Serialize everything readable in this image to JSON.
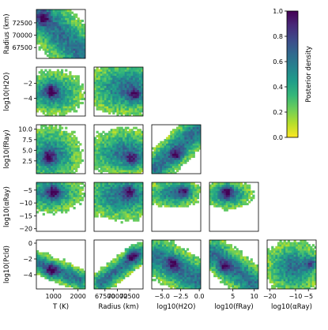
{
  "chart_data": {
    "type": "heatmap",
    "kind": "corner-plot",
    "title": "",
    "variables": [
      {
        "id": "T",
        "label": "T (K)",
        "range": [
          300,
          2300
        ],
        "ticks": [
          1000,
          2000
        ]
      },
      {
        "id": "R",
        "label": "Radius (km)",
        "range": [
          65300,
          75200
        ],
        "ticks": [
          67500,
          70000,
          72500
        ]
      },
      {
        "id": "H2O",
        "label": "log10(H2O)",
        "range": [
          -6.4,
          0.2
        ],
        "ticks": [
          -5.0,
          -2.5,
          0.0
        ],
        "tick_text": [
          "−5.0",
          "−2.5",
          "0.0"
        ]
      },
      {
        "id": "fRay",
        "label": "log10(fRay)",
        "range": [
          -0.5,
          11
        ],
        "ticks": [
          0,
          5,
          10
        ]
      },
      {
        "id": "aRay",
        "label": "log10(αRay)",
        "range": [
          -21,
          -2
        ],
        "ticks": [
          -20,
          -10,
          -5
        ],
        "tick_text": [
          "−20",
          "−10",
          "−5"
        ]
      },
      {
        "id": "Pcl",
        "label": "log10(Pcld)",
        "range": [
          -5.8,
          0.4
        ],
        "ticks": [
          -4,
          -2,
          0
        ]
      }
    ],
    "row_ticks": {
      "R": {
        "values": [
          67500,
          70000,
          72500
        ],
        "text": [
          "67500",
          "70000",
          "72500"
        ]
      },
      "H2O": {
        "values": [
          -4,
          -2
        ],
        "text": [
          "−4",
          "−2"
        ]
      },
      "fRay": {
        "values": [
          2.5,
          5.0,
          7.5,
          10.0
        ],
        "text": [
          "2.5",
          "5.0",
          "7.5",
          "10.0"
        ]
      },
      "aRay": {
        "values": [
          -20,
          -15,
          -10,
          -5
        ],
        "text": [
          "−20",
          "−15",
          "−10",
          "−5"
        ]
      },
      "Pcl": {
        "values": [
          -4,
          -2,
          0
        ],
        "text": [
          "−4",
          "−2",
          "0"
        ]
      }
    },
    "col_tick_text": {
      "T": [
        "1000",
        "2000"
      ],
      "R": [
        "67500",
        "70000",
        "72500"
      ],
      "H2O": [
        "−5.0",
        "−2.5",
        "0.0"
      ],
      "fRay": [
        "5",
        "10"
      ],
      "aRay": [
        "−20",
        "−10",
        "−5"
      ]
    },
    "axis_labels": {
      "rows": [
        "Radius (km)",
        "log10(H2O)",
        "log10(fRay)",
        "log10(αRay)",
        "log10(Pcld)"
      ],
      "cols": [
        "T (K)",
        "Radius (km)",
        "log10(H2O)",
        "log10(fRay)",
        "log10(αRay)"
      ]
    },
    "panels": [
      {
        "row": "R",
        "col": "T",
        "shape": "band",
        "from": [
          400,
          74500
        ],
        "to": [
          2100,
          66500
        ],
        "width": 2600,
        "peak": [
          600,
          73500
        ]
      },
      {
        "row": "H2O",
        "col": "T",
        "shape": "blob",
        "center": [
          1000,
          -3.2
        ],
        "spread": [
          650,
          1.6
        ],
        "peak": [
          900,
          -3.0
        ]
      },
      {
        "row": "H2O",
        "col": "R",
        "shape": "triangle",
        "center": [
          72000,
          -2.5
        ],
        "spread": [
          4500,
          2.0
        ],
        "peak": [
          73500,
          -3.5
        ]
      },
      {
        "row": "fRay",
        "col": "T",
        "shape": "blob",
        "center": [
          900,
          4.0
        ],
        "spread": [
          650,
          3.5
        ],
        "peak": [
          800,
          3.5
        ]
      },
      {
        "row": "fRay",
        "col": "R",
        "shape": "triangle",
        "center": [
          71500,
          4.5
        ],
        "spread": [
          4000,
          3.0
        ],
        "peak": [
          73000,
          3.0
        ]
      },
      {
        "row": "fRay",
        "col": "H2O",
        "shape": "band",
        "from": [
          -5.8,
          1.0
        ],
        "to": [
          -0.5,
          9.5
        ],
        "width": 1.2,
        "peak": [
          -3.0,
          4.0
        ]
      },
      {
        "row": "aRay",
        "col": "T",
        "shape": "curve",
        "center": [
          900,
          -6.0
        ],
        "spread": [
          700,
          4.0
        ],
        "peak": [
          1000,
          -5.5
        ]
      },
      {
        "row": "aRay",
        "col": "R",
        "shape": "curve",
        "center": [
          71000,
          -7.0
        ],
        "spread": [
          4500,
          5.0
        ],
        "peak": [
          72500,
          -5.5
        ]
      },
      {
        "row": "aRay",
        "col": "H2O",
        "shape": "blob",
        "center": [
          -3.5,
          -6.0
        ],
        "spread": [
          2.0,
          3.0
        ],
        "peak": [
          -2.0,
          -5.5
        ]
      },
      {
        "row": "aRay",
        "col": "fRay",
        "shape": "blob",
        "center": [
          4.0,
          -6.5
        ],
        "spread": [
          3.0,
          3.0
        ],
        "peak": [
          3.5,
          -5.5
        ]
      },
      {
        "row": "Pcl",
        "col": "T",
        "shape": "band",
        "from": [
          400,
          -2.5
        ],
        "to": [
          2000,
          -4.5
        ],
        "width": 1.6,
        "peak": [
          900,
          -3.5
        ]
      },
      {
        "row": "Pcl",
        "col": "R",
        "shape": "band",
        "from": [
          67000,
          -4.8
        ],
        "to": [
          74000,
          -1.5
        ],
        "width": 1.4,
        "peak": [
          73000,
          -1.5
        ]
      },
      {
        "row": "Pcl",
        "col": "H2O",
        "shape": "band",
        "from": [
          -5.5,
          -1.8
        ],
        "to": [
          -0.5,
          -4.5
        ],
        "width": 1.3,
        "peak": [
          -3.5,
          -2.5
        ]
      },
      {
        "row": "Pcl",
        "col": "fRay",
        "shape": "band",
        "from": [
          1.0,
          -1.5
        ],
        "to": [
          9.5,
          -5.0
        ],
        "width": 1.4,
        "peak": [
          3.0,
          -3.0
        ]
      },
      {
        "row": "Pcl",
        "col": "aRay",
        "shape": "blob",
        "center": [
          -11,
          -3.0
        ],
        "spread": [
          6.0,
          1.8
        ],
        "peak": [
          -4.0,
          -2.5
        ]
      }
    ],
    "colorbar": {
      "label": "Posterior density",
      "range": [
        0.0,
        1.0
      ],
      "ticks": [
        0.0,
        0.2,
        0.4,
        0.6,
        0.8,
        1.0
      ],
      "tick_text": [
        "0.0",
        "0.2",
        "0.4",
        "0.6",
        "0.8",
        "1.0"
      ],
      "colormap": "viridis_r",
      "colors": [
        "#fde725",
        "#b5de2b",
        "#6ece58",
        "#35b779",
        "#1f9e89",
        "#26828e",
        "#31688e",
        "#3e4989",
        "#482878",
        "#440154"
      ]
    },
    "grid": false
  }
}
